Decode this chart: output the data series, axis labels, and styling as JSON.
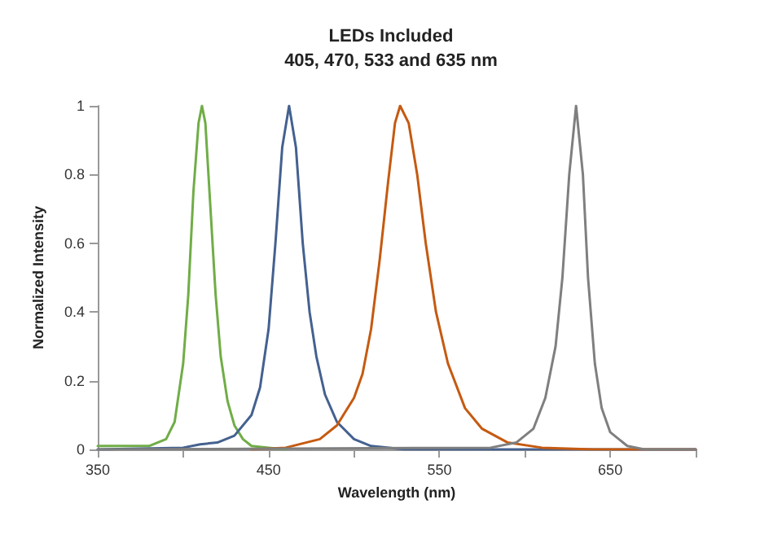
{
  "chart_data": {
    "type": "line",
    "title": "LEDs Included",
    "subtitle": "405, 470, 533 and 635 nm",
    "xlabel": "Wavelength (nm)",
    "ylabel": "Normalized Intensity",
    "xlim": [
      350,
      700
    ],
    "xticks": [
      350,
      {
        "value": 400,
        "label": null
      },
      450,
      {
        "value": 500,
        "label": null
      },
      550,
      {
        "value": 600,
        "label": null
      },
      650,
      {
        "value": 700,
        "label": null
      }
    ],
    "ylim": [
      0,
      1
    ],
    "yticks": [
      0,
      0.2,
      0.4,
      0.6,
      0.8,
      1
    ],
    "marker": "none",
    "line_style": "solid",
    "series": [
      {
        "color": "#70ad47",
        "x": [
          350,
          380,
          390,
          395,
          400,
          403,
          406,
          409,
          411,
          413,
          416,
          419,
          422,
          426,
          430,
          435,
          440,
          450,
          460
        ],
        "values": [
          0.01,
          0.01,
          0.03,
          0.08,
          0.25,
          0.45,
          0.75,
          0.95,
          1,
          0.95,
          0.7,
          0.45,
          0.27,
          0.14,
          0.07,
          0.03,
          0.01,
          0.005,
          0
        ]
      },
      {
        "color": "#44618f",
        "x": [
          350,
          400,
          410,
          420,
          430,
          440,
          445,
          450,
          454,
          458,
          462,
          466,
          470,
          474,
          478,
          483,
          490,
          500,
          510,
          530,
          700
        ],
        "values": [
          0,
          0.005,
          0.015,
          0.02,
          0.04,
          0.1,
          0.18,
          0.35,
          0.6,
          0.88,
          1,
          0.88,
          0.6,
          0.4,
          0.27,
          0.16,
          0.08,
          0.03,
          0.01,
          0,
          0
        ]
      },
      {
        "color": "#c55a11",
        "x": [
          440,
          460,
          480,
          490,
          500,
          505,
          510,
          515,
          520,
          524,
          527,
          532,
          537,
          542,
          548,
          555,
          565,
          575,
          590,
          610,
          640,
          700
        ],
        "values": [
          0,
          0.005,
          0.03,
          0.07,
          0.15,
          0.22,
          0.35,
          0.55,
          0.78,
          0.95,
          1,
          0.95,
          0.8,
          0.6,
          0.4,
          0.25,
          0.12,
          0.06,
          0.02,
          0.005,
          0,
          0
        ]
      },
      {
        "color": "#7f7f7f",
        "x": [
          350,
          580,
          595,
          605,
          612,
          618,
          622,
          626,
          630,
          634,
          637,
          641,
          645,
          650,
          660,
          670,
          700
        ],
        "values": [
          0,
          0.005,
          0.02,
          0.06,
          0.15,
          0.3,
          0.5,
          0.8,
          1,
          0.8,
          0.5,
          0.25,
          0.12,
          0.05,
          0.01,
          0,
          0
        ]
      }
    ]
  }
}
